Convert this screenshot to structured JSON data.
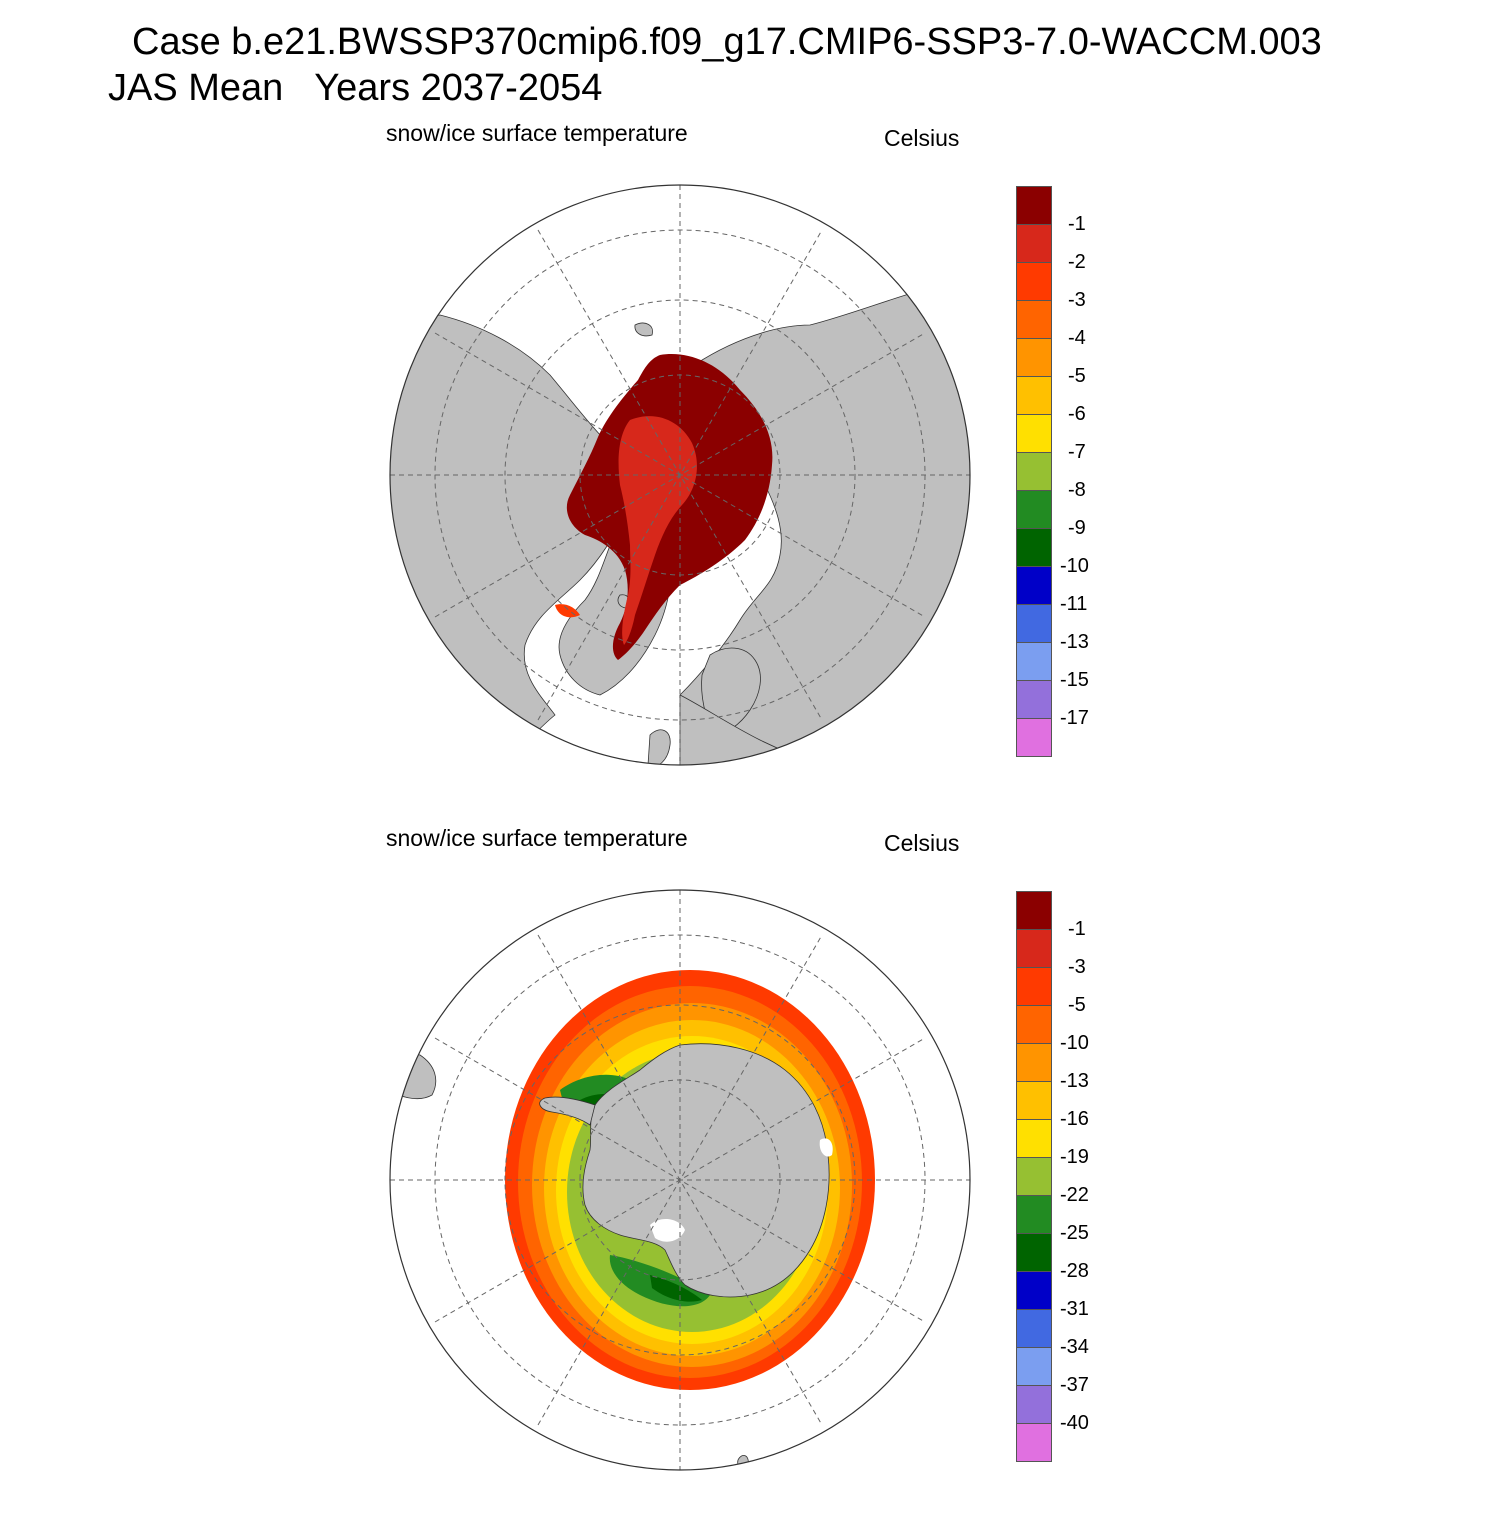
{
  "header": {
    "line1": "Case b.e21.BWSSP370cmip6.f09_g17.CMIP6-SSP3-7.0-WACCM.003",
    "line2": "JAS Mean   Years 2037-2054"
  },
  "panels": [
    {
      "title": "snow/ice surface temperature",
      "units": "Celsius",
      "hemisphere": "north",
      "colorbar": {
        "labels": [
          "-1",
          "-2",
          "-3",
          "-4",
          "-5",
          "-6",
          "-7",
          "-8",
          "-9",
          "-10",
          "-11",
          "-13",
          "-15",
          "-17"
        ],
        "colors": [
          "#8b0000",
          "#d7281b",
          "#ff3a00",
          "#ff6400",
          "#ff9400",
          "#ffc000",
          "#ffe000",
          "#96c032",
          "#228b22",
          "#006400",
          "#0000c8",
          "#4169e1",
          "#7b9ef0",
          "#9370db",
          "#e070e0"
        ]
      }
    },
    {
      "title": "snow/ice surface temperature",
      "units": "Celsius",
      "hemisphere": "south",
      "colorbar": {
        "labels": [
          "-1",
          "-3",
          "-5",
          "-10",
          "-13",
          "-16",
          "-19",
          "-22",
          "-25",
          "-28",
          "-31",
          "-34",
          "-37",
          "-40"
        ],
        "colors": [
          "#8b0000",
          "#d7281b",
          "#ff3a00",
          "#ff6400",
          "#ff9400",
          "#ffc000",
          "#ffe000",
          "#96c032",
          "#228b22",
          "#006400",
          "#0000c8",
          "#4169e1",
          "#7b9ef0",
          "#9370db",
          "#e070e0"
        ]
      }
    }
  ]
}
